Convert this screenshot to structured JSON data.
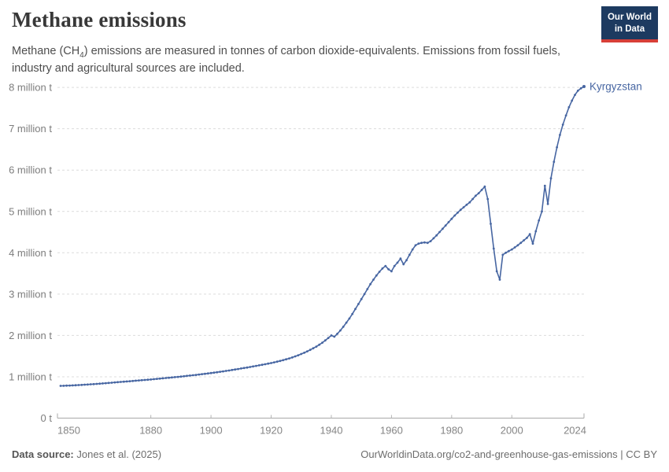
{
  "header": {
    "title": "Methane emissions",
    "subtitle_pre": "Methane (CH",
    "subtitle_sub": "4",
    "subtitle_post": ") emissions are measured in tonnes of carbon dioxide-equivalents. Emissions from fossil fuels, industry and agricultural sources are included.",
    "logo_line1": "Our World",
    "logo_line2": "in Data"
  },
  "chart_data": {
    "type": "line",
    "title": "Methane emissions",
    "unit": "tonnes of CO2-equivalents",
    "grid": "horizontal-dashed",
    "legend_position": "end-of-line",
    "xlim": [
      1850,
      2024
    ],
    "ylim": [
      0,
      8000000
    ],
    "x_ticks": [
      {
        "value": 1850,
        "label": "1850"
      },
      {
        "value": 1880,
        "label": "1880"
      },
      {
        "value": 1900,
        "label": "1900"
      },
      {
        "value": 1920,
        "label": "1920"
      },
      {
        "value": 1940,
        "label": "1940"
      },
      {
        "value": 1960,
        "label": "1960"
      },
      {
        "value": 1980,
        "label": "1980"
      },
      {
        "value": 2000,
        "label": "2000"
      },
      {
        "value": 2024,
        "label": "2024"
      }
    ],
    "y_ticks": [
      {
        "value": 0,
        "label": "0 t"
      },
      {
        "value": 1,
        "label": "1 million t"
      },
      {
        "value": 2,
        "label": "2 million t"
      },
      {
        "value": 3,
        "label": "3 million t"
      },
      {
        "value": 4,
        "label": "4 million t"
      },
      {
        "value": 5,
        "label": "5 million t"
      },
      {
        "value": 6,
        "label": "6 million t"
      },
      {
        "value": 7,
        "label": "7 million t"
      },
      {
        "value": 8,
        "label": "8 million t"
      }
    ],
    "series": [
      {
        "name": "Kyrgyzstan",
        "color": "#4766a2",
        "start_year": 1850,
        "values_million_t": [
          0.78,
          0.782,
          0.785,
          0.788,
          0.791,
          0.795,
          0.799,
          0.803,
          0.808,
          0.813,
          0.818,
          0.823,
          0.828,
          0.833,
          0.839,
          0.845,
          0.851,
          0.857,
          0.863,
          0.869,
          0.875,
          0.881,
          0.887,
          0.893,
          0.899,
          0.905,
          0.911,
          0.917,
          0.923,
          0.929,
          0.935,
          0.942,
          0.949,
          0.956,
          0.963,
          0.97,
          0.977,
          0.984,
          0.991,
          0.998,
          1.005,
          1.013,
          1.021,
          1.029,
          1.037,
          1.045,
          1.054,
          1.063,
          1.072,
          1.081,
          1.09,
          1.1,
          1.11,
          1.12,
          1.13,
          1.141,
          1.152,
          1.164,
          1.176,
          1.188,
          1.2,
          1.212,
          1.224,
          1.237,
          1.25,
          1.263,
          1.276,
          1.29,
          1.304,
          1.318,
          1.333,
          1.349,
          1.366,
          1.384,
          1.403,
          1.423,
          1.445,
          1.468,
          1.493,
          1.52,
          1.55,
          1.582,
          1.616,
          1.652,
          1.69,
          1.73,
          1.775,
          1.825,
          1.88,
          1.94,
          2.0,
          1.97,
          2.04,
          2.12,
          2.21,
          2.31,
          2.41,
          2.52,
          2.64,
          2.76,
          2.88,
          3.0,
          3.12,
          3.24,
          3.35,
          3.45,
          3.54,
          3.62,
          3.68,
          3.6,
          3.55,
          3.68,
          3.76,
          3.86,
          3.72,
          3.82,
          3.95,
          4.08,
          4.18,
          4.22,
          4.24,
          4.25,
          4.24,
          4.28,
          4.35,
          4.42,
          4.5,
          4.58,
          4.66,
          4.74,
          4.82,
          4.9,
          4.97,
          5.04,
          5.1,
          5.16,
          5.22,
          5.3,
          5.38,
          5.44,
          5.52,
          5.6,
          5.3,
          4.7,
          4.1,
          3.55,
          3.35,
          3.95,
          4.0,
          4.04,
          4.08,
          4.13,
          4.18,
          4.24,
          4.3,
          4.36,
          4.45,
          4.22,
          4.52,
          4.78,
          5.0,
          5.62,
          5.18,
          5.8,
          6.2,
          6.55,
          6.85,
          7.1,
          7.32,
          7.52,
          7.68,
          7.82,
          7.92,
          7.98,
          8.02
        ]
      }
    ]
  },
  "footer": {
    "source_label": "Data source:",
    "source_value": "Jones et al. (2025)",
    "origin_link": "OurWorldinData.org/co2-and-greenhouse-gas-emissions | CC BY"
  }
}
